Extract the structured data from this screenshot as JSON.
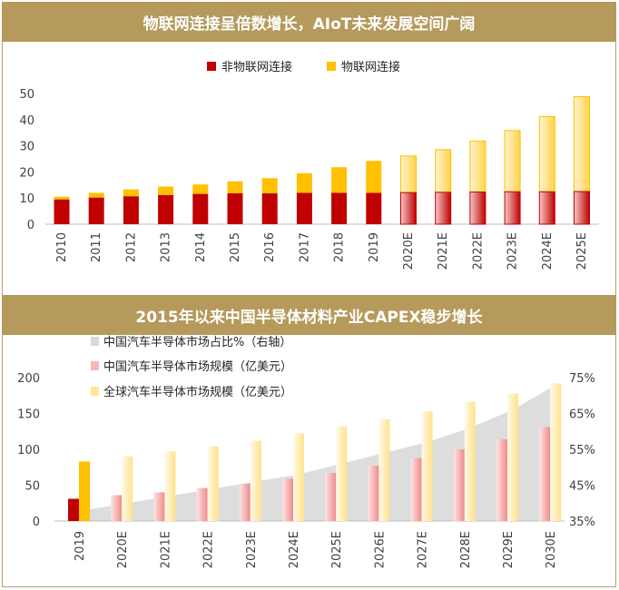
{
  "panel1": {
    "title": "物联网连接呈倍数增长，AIoT未来发展空间广阔",
    "chart_data": {
      "type": "bar",
      "stacked": true,
      "categories": [
        "2010",
        "2011",
        "2012",
        "2013",
        "2014",
        "2015",
        "2016",
        "2017",
        "2018",
        "2019",
        "2020E",
        "2021E",
        "2022E",
        "2023E",
        "2024E",
        "2025E"
      ],
      "series": [
        {
          "name": "非物联网连接",
          "color": "#c00000",
          "values": [
            9.5,
            10.2,
            10.7,
            11.2,
            11.6,
            11.8,
            11.8,
            12.0,
            12.0,
            12.0,
            12.1,
            12.2,
            12.3,
            12.4,
            12.4,
            12.5
          ]
        },
        {
          "name": "物联网连接",
          "color": "#ffc000",
          "values": [
            1.0,
            1.8,
            2.6,
            3.2,
            3.6,
            4.6,
            5.8,
            7.5,
            9.8,
            12.2,
            14.0,
            16.3,
            19.5,
            23.4,
            28.8,
            36.3
          ]
        }
      ],
      "yticks": [
        0,
        10,
        20,
        30,
        40,
        50
      ],
      "ylim": [
        0,
        50
      ],
      "legend": "top"
    }
  },
  "panel2": {
    "title": "2015年以来中国半导体材料产业CAPEX稳步增长",
    "chart_data": {
      "type": "bar",
      "categories": [
        "2019",
        "2020E",
        "2021E",
        "2022E",
        "2023E",
        "2024E",
        "2025E",
        "2026E",
        "2027E",
        "2028E",
        "2029E",
        "2030E"
      ],
      "series": [
        {
          "name": "中国汽车半导体市场占比%（右轴）",
          "type": "area",
          "axis": "right",
          "color": "#d9d9d9",
          "values": [
            38,
            40,
            42,
            44,
            46,
            48,
            51,
            54,
            57,
            61,
            66,
            73
          ]
        },
        {
          "name": "中国汽车半导体市场规模（亿美元）",
          "type": "bar",
          "axis": "left",
          "color": "#f4b8b8",
          "highlight_color": "#c00000",
          "values": [
            31,
            36,
            40,
            46,
            52,
            59,
            67,
            77,
            88,
            100,
            114,
            131
          ]
        },
        {
          "name": "全球汽车半导体市场规模（亿美元）",
          "type": "bar",
          "axis": "left",
          "color": "#ffe699",
          "highlight_color": "#ffc000",
          "values": [
            83,
            90,
            97,
            104,
            112,
            122,
            132,
            142,
            153,
            166,
            178,
            192
          ]
        }
      ],
      "yticks_left": [
        0,
        50,
        100,
        150,
        200
      ],
      "ylim_left": [
        0,
        200
      ],
      "yticks_right": [
        "35%",
        "45%",
        "55%",
        "65%",
        "75%"
      ],
      "ylim_right": [
        35,
        75
      ],
      "legend": "top-left"
    }
  }
}
